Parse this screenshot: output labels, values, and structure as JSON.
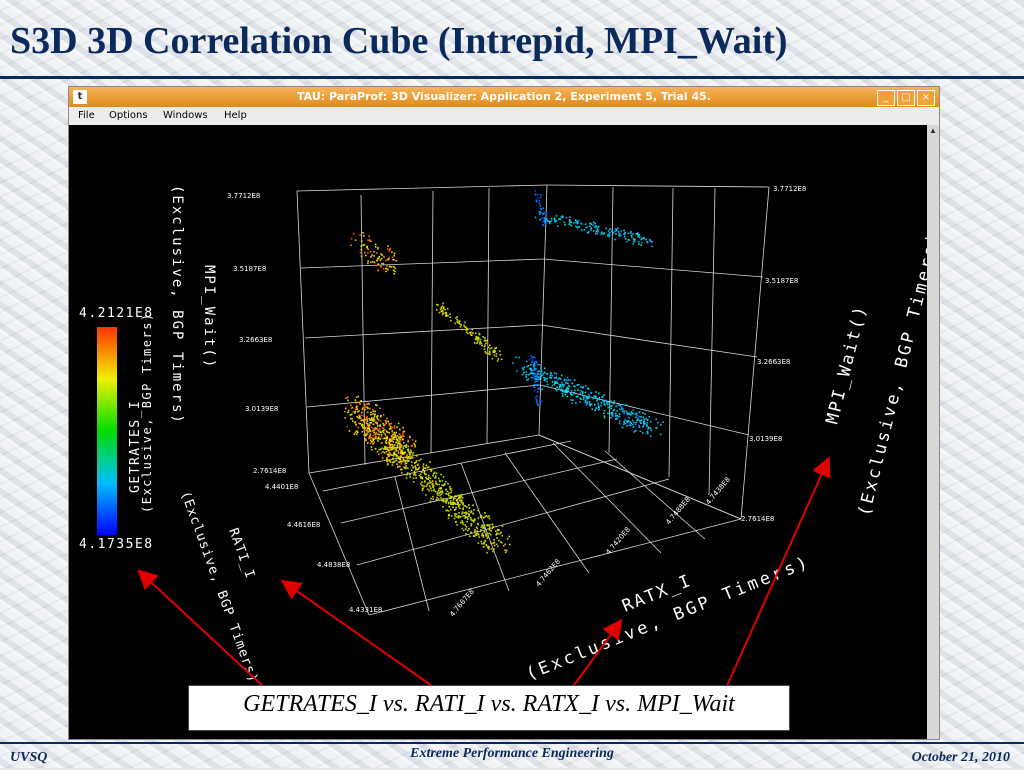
{
  "slide": {
    "title": "S3D 3D Correlation Cube (Intrepid, MPI_Wait)",
    "caption": "GETRATES_I vs. RATI_I vs. RATX_I vs. MPI_Wait",
    "footer_left": "UVSQ",
    "footer_center": "Extreme Performance Engineering",
    "footer_right": "October 21, 2010"
  },
  "window": {
    "icon_label": "t",
    "title": "TAU: ParaProf: 3D Visualizer: Application 2, Experiment 5, Trial 45.",
    "minimize_label": "_",
    "maximize_label": "□",
    "close_label": "×",
    "menu": [
      "File",
      "Options",
      "Windows",
      "Help"
    ]
  },
  "colorbar": {
    "max_label": "4.2121E8",
    "min_label": "4.1735E8",
    "axis_label": "GETRATES_I",
    "axis_sublabel": "(Exclusive, BGP Timers)"
  },
  "axes": {
    "z_label": "MPI_Wait()",
    "z_sublabel": "(Exclusive, BGP Timers)",
    "y_label": "RATI_I",
    "y_sublabel": "(Exclusive, BGP Timers)",
    "x_label": "RATX_I",
    "x_sublabel": "(Exclusive, BGP Timers)",
    "z_ticks_left": [
      "3.7712E8",
      "3.5187E8",
      "3.2663E8",
      "3.0139E8",
      "2.7614E8"
    ],
    "z_ticks_right": [
      "3.7712E8",
      "3.5187E8",
      "3.2663E8",
      "3.0139E8",
      "2.7614E8"
    ],
    "y_ticks": [
      "4.4401E8",
      "4.4616E8",
      "4.4838E8",
      "4.4331E8"
    ],
    "x_ticks": [
      "4.7667E8",
      "4.7462E8",
      "4.7420E8",
      "4.7488E8",
      "4.7438E8"
    ]
  },
  "colors": {
    "title": "#0b2a5c",
    "titlebar": "#e08a1a",
    "arrow": "#e00000",
    "scene_background": "#000000",
    "low": "#0000ff",
    "high": "#ff3300"
  }
}
